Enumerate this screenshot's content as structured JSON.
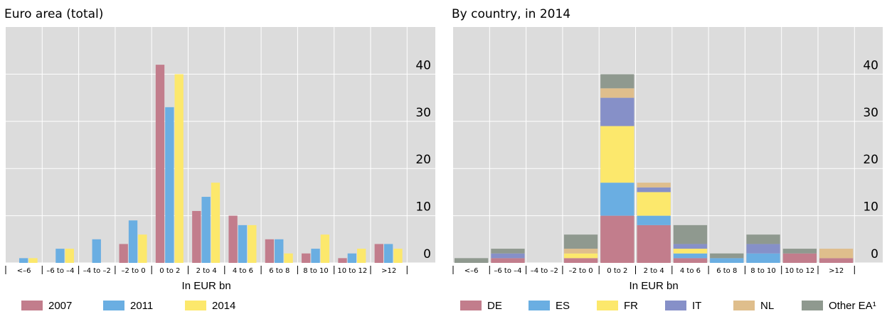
{
  "chart_data": [
    {
      "type": "bar",
      "title": "Euro area (total)",
      "x_label": "In EUR bn",
      "categories": [
        "<–6",
        "–6 to –4",
        "–4 to –2",
        "–2 to 0",
        "0 to 2",
        "2 to 4",
        "4 to 6",
        "6 to 8",
        "8 to 10",
        "10 to 12",
        ">12"
      ],
      "series": [
        {
          "name": "2007",
          "color": "#c27d8c",
          "values": [
            0,
            0,
            0,
            4,
            42,
            11,
            10,
            5,
            2,
            1,
            4
          ]
        },
        {
          "name": "2011",
          "color": "#6aaee2",
          "values": [
            1,
            3,
            5,
            9,
            33,
            14,
            8,
            5,
            3,
            2,
            4
          ]
        },
        {
          "name": "2014",
          "color": "#fce86c",
          "values": [
            1,
            3,
            0,
            6,
            40,
            17,
            8,
            2,
            6,
            3,
            3
          ]
        }
      ],
      "ylim": [
        0,
        50
      ],
      "yticks": [
        0,
        10,
        20,
        30,
        40
      ],
      "grid": true
    },
    {
      "type": "stacked_bar",
      "title": "By country, in 2014",
      "x_label": "In EUR bn",
      "categories": [
        "<–6",
        "–6 to –4",
        "–4 to –2",
        "–2 to 0",
        "0 to 2",
        "2 to 4",
        "4 to 6",
        "6 to 8",
        "8 to 10",
        "10 to 12",
        ">12"
      ],
      "series": [
        {
          "name": "DE",
          "color": "#c27d8c",
          "values": [
            0,
            1,
            0,
            1,
            10,
            8,
            1,
            0,
            0,
            2,
            1
          ]
        },
        {
          "name": "ES",
          "color": "#6aaee2",
          "values": [
            0,
            0,
            0,
            0,
            7,
            2,
            1,
            1,
            2,
            0,
            0
          ]
        },
        {
          "name": "FR",
          "color": "#fce86c",
          "values": [
            0,
            0,
            0,
            1,
            12,
            5,
            1,
            0,
            0,
            0,
            0
          ]
        },
        {
          "name": "IT",
          "color": "#8690c8",
          "values": [
            0,
            1,
            0,
            0,
            6,
            1,
            1,
            0,
            2,
            0,
            0
          ]
        },
        {
          "name": "NL",
          "color": "#dfbe8c",
          "values": [
            0,
            0,
            0,
            1,
            2,
            1,
            0,
            0,
            0,
            0,
            2
          ]
        },
        {
          "name": "Other EA¹",
          "color": "#8f998f",
          "values": [
            1,
            1,
            0,
            3,
            3,
            0,
            4,
            1,
            2,
            1,
            0
          ]
        }
      ],
      "ylim": [
        0,
        50
      ],
      "yticks": [
        0,
        10,
        20,
        30,
        40
      ],
      "grid": true
    }
  ]
}
